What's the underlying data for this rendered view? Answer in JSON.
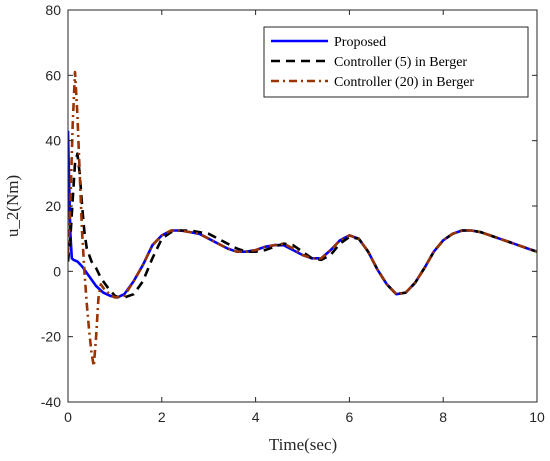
{
  "chart_data": {
    "type": "line",
    "title": "",
    "xlabel": "Time(sec)",
    "ylabel": "u_2(Nm)",
    "xlim": [
      0,
      10
    ],
    "ylim": [
      -40,
      80
    ],
    "xticks": [
      "0",
      "2",
      "4",
      "6",
      "8",
      "10"
    ],
    "yticks": [
      "-40",
      "-20",
      "0",
      "20",
      "40",
      "60",
      "80"
    ],
    "grid": false,
    "legend_position": "top-right",
    "series": [
      {
        "name": "Proposed",
        "color": "#0000ff",
        "style": "solid",
        "x": [
          0,
          0.02,
          0.05,
          0.08,
          0.12,
          0.2,
          0.3,
          0.45,
          0.6,
          0.75,
          0.9,
          1.05,
          1.2,
          1.4,
          1.6,
          1.8,
          2.0,
          2.2,
          2.4,
          2.6,
          2.8,
          3.0,
          3.2,
          3.4,
          3.6,
          3.8,
          4.0,
          4.2,
          4.4,
          4.6,
          4.8,
          5.0,
          5.2,
          5.4,
          5.6,
          5.8,
          6.0,
          6.2,
          6.4,
          6.6,
          6.8,
          7.0,
          7.2,
          7.4,
          7.6,
          7.8,
          8.0,
          8.2,
          8.4,
          8.6,
          8.8,
          9.0,
          9.2,
          9.4,
          9.6,
          9.8,
          10.0
        ],
        "y": [
          43,
          30,
          12,
          4,
          3.5,
          3,
          1.5,
          -1.5,
          -4.5,
          -6.5,
          -7.5,
          -8,
          -7,
          -3,
          2,
          8,
          11,
          12.5,
          12.5,
          12,
          11.5,
          10,
          8.5,
          7,
          6,
          6,
          6.5,
          7.5,
          8,
          8,
          6.5,
          5,
          4,
          4,
          6.5,
          9.5,
          11,
          10,
          6,
          0.5,
          -4,
          -7,
          -6.5,
          -3.5,
          1,
          6,
          9.5,
          11.5,
          12.5,
          12.5,
          12,
          11,
          10,
          9,
          8,
          7,
          6
        ]
      },
      {
        "name": "Controller (5) in Berger",
        "color": "#000000",
        "style": "dashed",
        "x": [
          0,
          0.05,
          0.1,
          0.15,
          0.2,
          0.25,
          0.3,
          0.35,
          0.4,
          0.5,
          0.6,
          0.7,
          0.85,
          1.0,
          1.1,
          1.2,
          1.4,
          1.6,
          1.8,
          2.0,
          2.2,
          2.4,
          2.6,
          2.8,
          3.0,
          3.2,
          3.4,
          3.6,
          3.8,
          4.0,
          4.2,
          4.4,
          4.6,
          4.8,
          5.0,
          5.2,
          5.4,
          5.6,
          5.8,
          6.0,
          6.2,
          6.4,
          6.6,
          6.8,
          7.0,
          7.2,
          7.4,
          7.6,
          7.8,
          8.0,
          8.2,
          8.4,
          8.6,
          8.8,
          9.0,
          9.2,
          9.4,
          9.6,
          9.8,
          10.0
        ],
        "y": [
          3,
          10,
          22,
          33,
          36,
          30,
          20,
          12,
          7,
          3,
          1,
          -2,
          -5,
          -7.5,
          -8,
          -8,
          -7,
          -3,
          4,
          10,
          12,
          12.5,
          12.5,
          12,
          11.5,
          10,
          8.5,
          7,
          6,
          6,
          6.5,
          7.5,
          8.5,
          8,
          6,
          4,
          3.5,
          5,
          8.5,
          10.5,
          10,
          6,
          0.5,
          -4,
          -7,
          -6.5,
          -3.5,
          1,
          6,
          9.5,
          11.5,
          12.5,
          12.5,
          12,
          11,
          10,
          9,
          8,
          7,
          6
        ]
      },
      {
        "name": "Controller (20) in Berger",
        "color": "#993300",
        "style": "dashdot",
        "x": [
          0,
          0.05,
          0.1,
          0.15,
          0.2,
          0.25,
          0.3,
          0.35,
          0.4,
          0.45,
          0.5,
          0.55,
          0.6,
          0.65,
          0.7,
          0.8,
          0.9,
          1.0,
          1.2,
          1.4,
          1.6,
          1.8,
          2.0,
          2.2,
          2.4,
          2.6,
          2.8,
          3.0,
          3.2,
          3.4,
          3.6,
          3.8,
          4.0,
          4.2,
          4.4,
          4.6,
          4.8,
          5.0,
          5.2,
          5.4,
          5.6,
          5.8,
          6.0,
          6.2,
          6.4,
          6.6,
          6.8,
          7.0,
          7.2,
          7.4,
          7.6,
          7.8,
          8.0,
          8.2,
          8.4,
          8.6,
          8.8,
          9.0,
          9.2,
          9.4,
          9.6,
          9.8,
          10.0
        ],
        "y": [
          5,
          20,
          45,
          61,
          48,
          30,
          12,
          0,
          -10,
          -18,
          -25,
          -29,
          -20,
          -8,
          -4,
          -6,
          -7,
          -8,
          -7.5,
          -3,
          2,
          8,
          11,
          12.5,
          12.5,
          12,
          11.5,
          10,
          8.5,
          7,
          6,
          6,
          6.5,
          7.5,
          8,
          8.5,
          7,
          5,
          4,
          4,
          6.5,
          9.5,
          11,
          10,
          6,
          0.5,
          -4,
          -7,
          -6.5,
          -3.5,
          1,
          6,
          9.5,
          11.5,
          12.5,
          12.5,
          12,
          11,
          10,
          9,
          8,
          7,
          6
        ]
      }
    ]
  }
}
